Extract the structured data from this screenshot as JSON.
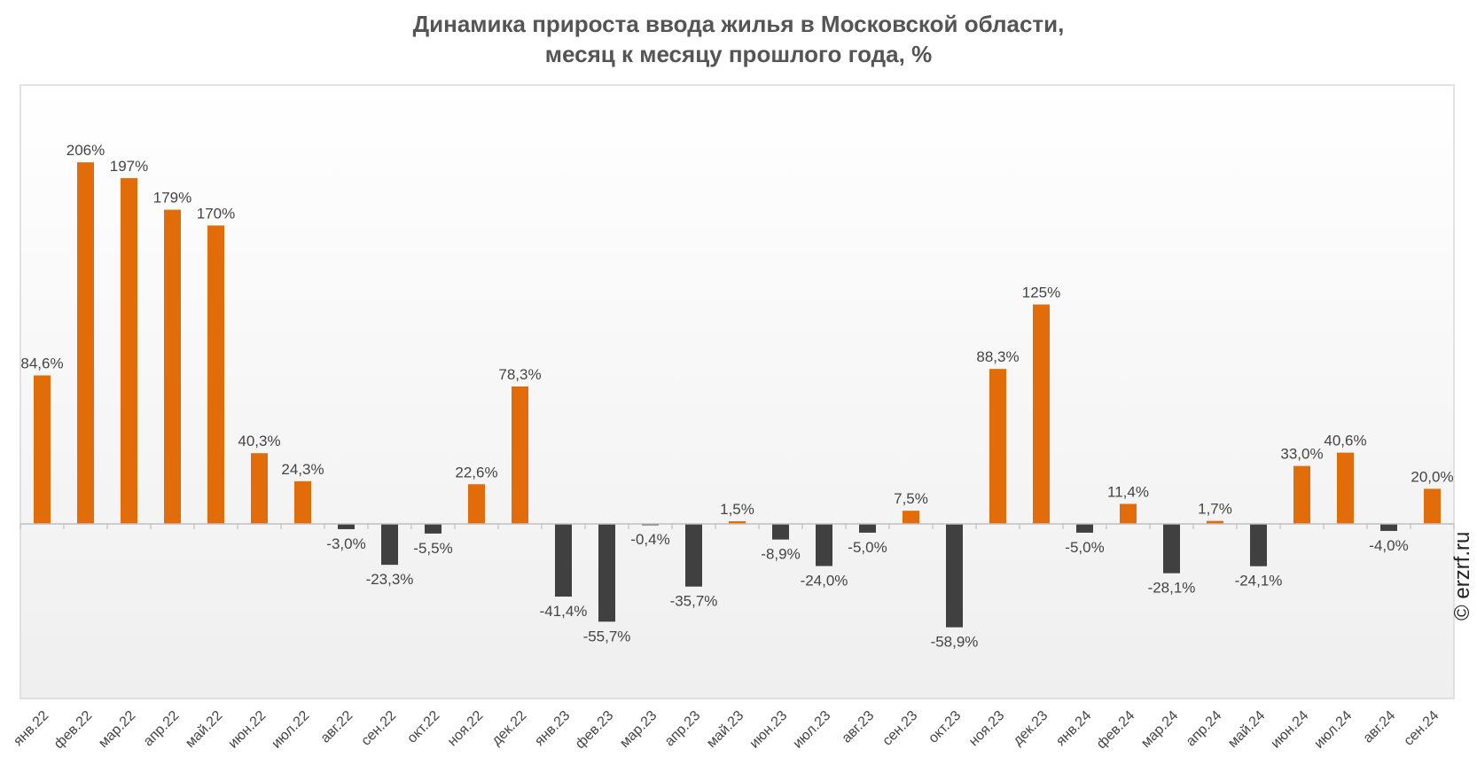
{
  "chart_data": {
    "type": "bar",
    "title": [
      "Динамика прироста ввода жилья в Московской области,",
      "месяц к месяцу прошлого года, %"
    ],
    "categories": [
      "янв.22",
      "фев.22",
      "мар.22",
      "апр.22",
      "май.22",
      "июн.22",
      "июл.22",
      "авг.22",
      "сен.22",
      "окт.22",
      "ноя.22",
      "дек.22",
      "янв.23",
      "фев.23",
      "мар.23",
      "апр.23",
      "май.23",
      "июн.23",
      "июл.23",
      "авг.23",
      "сен.23",
      "окт.23",
      "ноя.23",
      "дек.23",
      "янв.24",
      "фев.24",
      "мар.24",
      "апр.24",
      "май.24",
      "июн.24",
      "июл.24",
      "авг.24",
      "сен.24"
    ],
    "values": [
      84.6,
      206,
      197,
      179,
      170,
      40.3,
      24.3,
      -3.0,
      -23.3,
      -5.5,
      22.6,
      78.3,
      -41.4,
      -55.7,
      -0.4,
      -35.7,
      1.5,
      -8.9,
      -24.0,
      -5.0,
      7.5,
      -58.9,
      88.3,
      125,
      -5.0,
      11.4,
      -28.1,
      1.7,
      -24.1,
      33.0,
      40.6,
      -4.0,
      20.0
    ],
    "labels": [
      "84,6%",
      "206%",
      "197%",
      "179%",
      "170%",
      "40,3%",
      "24,3%",
      "-3,0%",
      "-23,3%",
      "-5,5%",
      "22,6%",
      "78,3%",
      "-41,4%",
      "-55,7%",
      "-0,4%",
      "-35,7%",
      "1,5%",
      "-8,9%",
      "-24,0%",
      "-5,0%",
      "7,5%",
      "-58,9%",
      "88,3%",
      "125%",
      "-5,0%",
      "11,4%",
      "-28,1%",
      "1,7%",
      "-24,1%",
      "33,0%",
      "40,6%",
      "-4,0%",
      "20,0%"
    ],
    "xlabel": "",
    "ylabel": "",
    "ylim": [
      -100,
      250
    ],
    "grid": false,
    "colors": {
      "positive": "#E36C0A",
      "negative": "#404040"
    }
  },
  "watermark": "© erzrf.ru"
}
